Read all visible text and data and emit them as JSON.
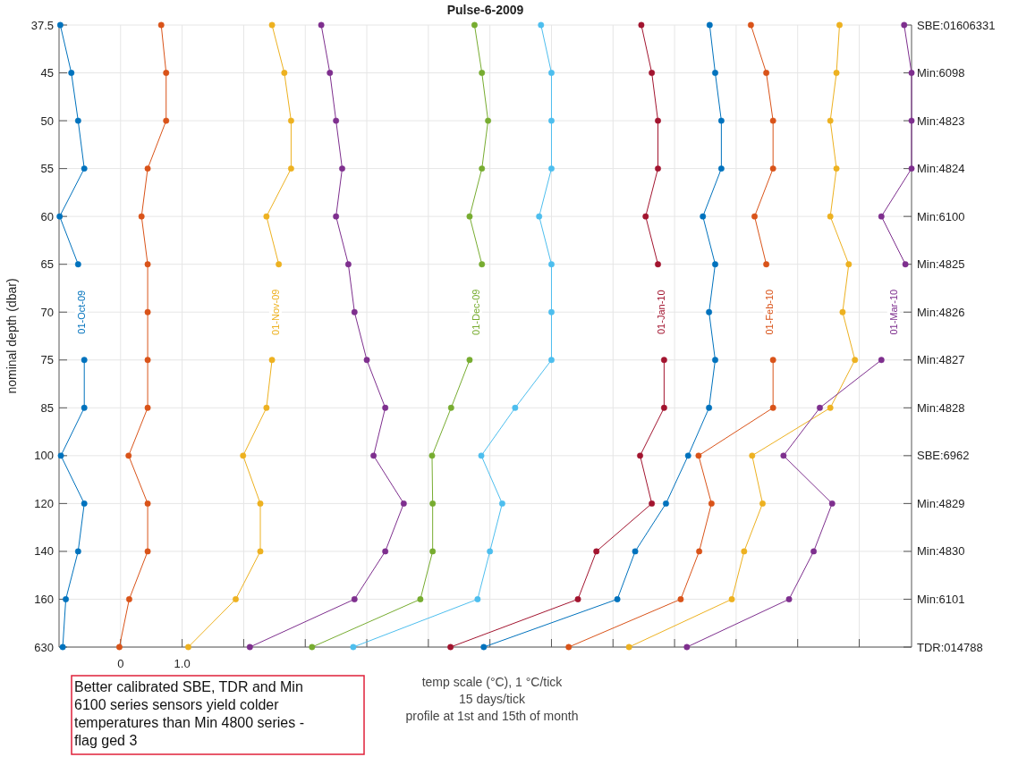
{
  "chart_data": {
    "type": "line",
    "orientation": "horizontal",
    "title": "Pulse-6-2009",
    "ylabel": "nominal depth (dbar)",
    "xlabel": "temp scale (°C), 1 °C/tick\n15 days/tick\nprofile at 1st and 15th of month",
    "annotations": [
      "Better calibrated SBE, TDR and Min 6100 series sensors yield colder temperatures than Min 4800 series - flag ged 3"
    ],
    "categories": [
      "37.5",
      "45",
      "50",
      "55",
      "60",
      "65",
      "70",
      "75",
      "85",
      "100",
      "120",
      "140",
      "160",
      "630"
    ],
    "y2_categories": [
      "SBE:01606331",
      "Min:6098",
      "Min:4823",
      "Min:4824",
      "Min:6100",
      "Min:4825",
      "Min:4826",
      "Min:4827",
      "Min:4828",
      "SBE:6962",
      "Min:4829",
      "Min:4830",
      "Min:6101",
      "TDR:014788"
    ],
    "xlim": [
      -1,
      12.85
    ],
    "xticks": [
      0,
      {
        "value": 1,
        "label": "1.0"
      },
      {
        "value": 2,
        "label": null
      },
      {
        "value": 3,
        "label": null
      },
      {
        "value": 4,
        "label": null
      },
      {
        "value": 5,
        "label": null
      },
      {
        "value": 6,
        "label": null
      },
      {
        "value": 7,
        "label": null
      },
      {
        "value": 8,
        "label": null
      },
      {
        "value": 9,
        "label": null
      },
      {
        "value": 10,
        "label": null
      },
      {
        "value": 11,
        "label": null
      },
      {
        "value": 12,
        "label": null
      }
    ],
    "grid": true,
    "marker": "circle",
    "line_style": "solid",
    "series": [
      {
        "name": "01-Oct-09",
        "color": "#0072bd",
        "values": [
          -0.98,
          -0.8,
          -0.69,
          -0.59,
          -0.99,
          -0.69,
          null,
          -0.59,
          -0.59,
          -0.97,
          -0.59,
          -0.69,
          -0.89,
          -0.94
        ]
      },
      {
        "color": "#d95319",
        "values": [
          0.66,
          0.74,
          0.74,
          0.44,
          0.34,
          0.44,
          0.44,
          0.44,
          0.44,
          0.13,
          0.44,
          0.44,
          0.14,
          -0.02
        ]
      },
      {
        "name": "01-Nov-09",
        "color": "#edb120",
        "values": [
          2.46,
          2.66,
          2.77,
          2.77,
          2.37,
          2.57,
          null,
          2.46,
          2.37,
          1.99,
          2.27,
          2.27,
          1.87,
          1.1
        ]
      },
      {
        "color": "#7e2f8e",
        "values": [
          3.26,
          3.4,
          3.5,
          3.6,
          3.5,
          3.7,
          3.8,
          4.0,
          4.3,
          4.11,
          4.6,
          4.3,
          3.8,
          2.1
        ]
      },
      {
        "name": "01-Dec-09",
        "color": "#77ac30",
        "values": [
          5.75,
          5.87,
          5.97,
          5.87,
          5.67,
          5.87,
          null,
          5.67,
          5.37,
          5.06,
          5.07,
          5.07,
          4.87,
          3.11
        ]
      },
      {
        "color": "#4dbeee",
        "values": [
          6.83,
          7.0,
          7.0,
          7.0,
          6.8,
          7.0,
          7.0,
          7.0,
          6.41,
          5.86,
          6.2,
          6.0,
          5.8,
          3.78
        ]
      },
      {
        "name": "01-Jan-10",
        "color": "#a2142f",
        "values": [
          8.46,
          8.63,
          8.73,
          8.73,
          8.53,
          8.73,
          null,
          8.83,
          8.83,
          8.44,
          8.63,
          7.73,
          7.43,
          5.36
        ]
      },
      {
        "color": "#0072bd",
        "values": [
          9.57,
          9.66,
          9.76,
          9.76,
          9.46,
          9.66,
          9.56,
          9.66,
          9.56,
          9.22,
          8.86,
          8.36,
          8.07,
          5.9
        ]
      },
      {
        "name": "01-Feb-10",
        "color": "#d95319",
        "values": [
          10.24,
          10.49,
          10.6,
          10.6,
          10.3,
          10.49,
          null,
          10.6,
          10.6,
          9.39,
          9.6,
          9.4,
          9.1,
          7.28
        ]
      },
      {
        "color": "#edb120",
        "values": [
          11.68,
          11.63,
          11.53,
          11.63,
          11.53,
          11.83,
          11.73,
          11.93,
          11.53,
          10.26,
          10.43,
          10.13,
          9.93,
          8.26
        ]
      },
      {
        "name": "01-Mar-10",
        "color": "#7e2f8e",
        "values": [
          12.73,
          12.85,
          12.85,
          12.85,
          12.36,
          12.75,
          null,
          12.36,
          11.36,
          10.77,
          11.56,
          11.26,
          10.86,
          9.2
        ]
      }
    ]
  }
}
